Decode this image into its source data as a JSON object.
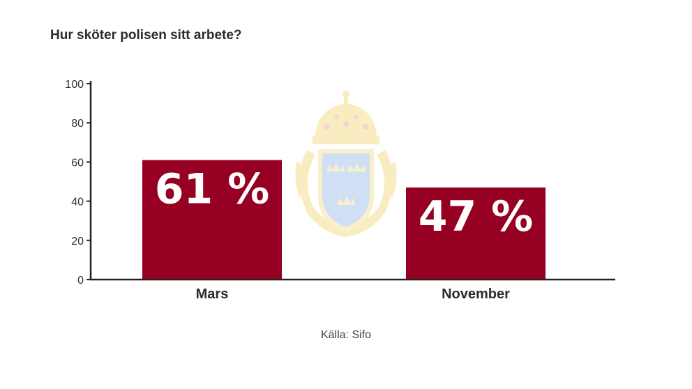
{
  "chart_data": {
    "type": "bar",
    "title": "Hur sköter polisen sitt arbete?",
    "categories": [
      "Mars",
      "November"
    ],
    "values": [
      61,
      47
    ],
    "data_labels": [
      "61 %",
      "47 %"
    ],
    "ylim": [
      0,
      100
    ],
    "yticks": [
      "0",
      "20",
      "40",
      "60",
      "80",
      "100"
    ],
    "xlabel": "",
    "ylabel": "",
    "grid": false,
    "legend": "none",
    "bar_color": "#950023",
    "source": "Källa: Sifo"
  },
  "watermark": {
    "type": "emblem",
    "name": "police-emblem-watermark-icon",
    "colors": [
      "#f3d77a",
      "#8fb6e6",
      "#e8a2a2"
    ]
  }
}
